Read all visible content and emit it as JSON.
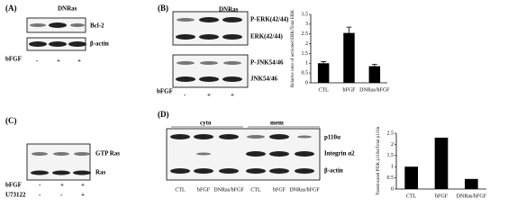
{
  "panels": {
    "A": {
      "label": "(A)",
      "header": "DNRas",
      "rows": [
        "Bcl-2",
        "β-actin"
      ],
      "treatment": "bFGF",
      "signs": [
        "-",
        "+",
        "+"
      ]
    },
    "B": {
      "label": "(B)",
      "header": "DNRas",
      "rows": [
        "P-ERK(42/44)",
        "ERK(42/44)",
        "P-JNK54/46",
        "JNK54/46"
      ],
      "treatment": "bFGF",
      "signs": [
        "-",
        "+",
        "+"
      ]
    },
    "C": {
      "label": "(C)",
      "rows": [
        "GTP Ras",
        "Ras"
      ],
      "treatments": [
        {
          "name": "bFGF",
          "signs": [
            "-",
            "+",
            "+"
          ]
        },
        {
          "name": "U73122",
          "signs": [
            "-",
            "-",
            "+"
          ]
        }
      ]
    },
    "D": {
      "label": "(D)",
      "groups": [
        "cyto",
        "mem"
      ],
      "rows": [
        "p110α",
        "Integrin α2",
        "β-actin"
      ],
      "lanes": [
        "CTL",
        "bFGF",
        "DNRas/bFGF",
        "CTL",
        "bFGF",
        "DNRas/bFGF"
      ]
    }
  },
  "chart_data": [
    {
      "type": "bar",
      "y_label": "Relative ratio of activated ERK/Total ERK",
      "categories": [
        "CTL",
        "bFGF",
        "DNRas/bFGF"
      ],
      "values": [
        1,
        2.55,
        0.85
      ],
      "errors": [
        0.08,
        0.3,
        0.1
      ],
      "color": "#000000",
      "ylim": [
        0,
        3.5
      ],
      "yticks": [
        0,
        0.5,
        1,
        1.5,
        2,
        2.5,
        3,
        3.5
      ]
    },
    {
      "type": "bar",
      "y_label": "Translocated PI3K p110α/Total p110α",
      "categories": [
        "CTL",
        "bFGF",
        "DNRas/bFGF"
      ],
      "values": [
        1,
        2.3,
        0.45
      ],
      "color": "#000000",
      "ylim": [
        0,
        2.5
      ],
      "yticks": [
        0,
        0.5,
        1,
        1.5,
        2,
        2.5
      ]
    }
  ]
}
